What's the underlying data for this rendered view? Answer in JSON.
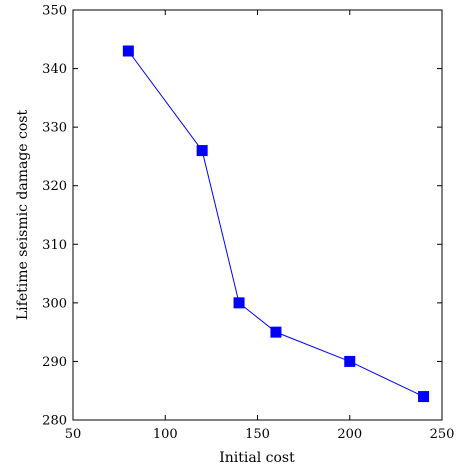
{
  "chart_data": {
    "type": "line",
    "xlabel": "Initial cost",
    "ylabel": "Lifetime seismic damage cost",
    "xlim": [
      50,
      250
    ],
    "ylim": [
      280,
      350
    ],
    "xticks": [
      50,
      100,
      150,
      200,
      250
    ],
    "yticks": [
      280,
      290,
      300,
      310,
      320,
      330,
      340,
      350
    ],
    "grid": false,
    "series": [
      {
        "x": [
          80,
          120,
          140,
          160,
          200,
          240
        ],
        "y": [
          343,
          326,
          300,
          295,
          290,
          284
        ],
        "color": "#0000ff",
        "marker": "square"
      }
    ]
  }
}
